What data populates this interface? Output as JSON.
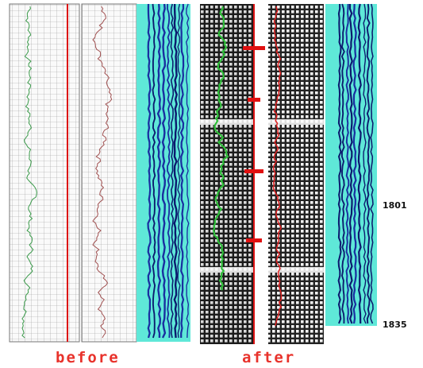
{
  "panels": {
    "before_label": "before",
    "after_label": "after"
  },
  "depth_labels": [
    "1801",
    "1835"
  ]
}
